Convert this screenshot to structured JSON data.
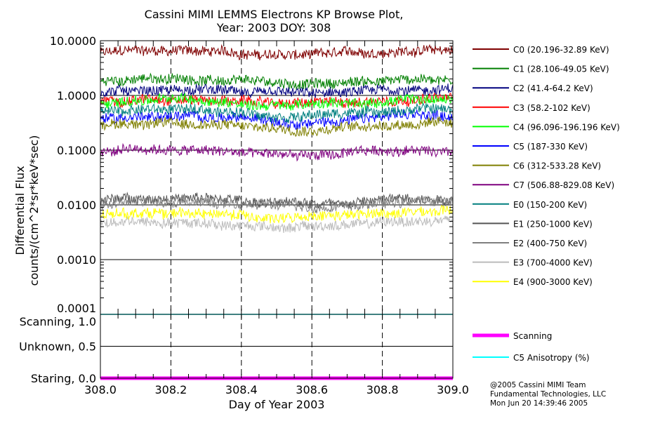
{
  "chart_data": {
    "type": "line",
    "title": "Cassini MIMI LEMMS Electrons KP Browse Plot,",
    "subtitle": "Year: 2003 DOY: 308",
    "xlabel": "Day of Year 2003",
    "ylabel_line1": "Differential Flux",
    "ylabel_line2": "counts/(cm^2*sr*keV*sec)",
    "xlim": [
      308.0,
      309.0
    ],
    "x_ticks": [
      "308.0",
      "308.2",
      "308.4",
      "308.6",
      "308.8",
      "309.0"
    ],
    "x_tick_values": [
      308.0,
      308.2,
      308.4,
      308.6,
      308.8,
      309.0
    ],
    "ylim": [
      0.0001,
      10
    ],
    "yscale": "log",
    "y_ticks": [
      "10.0000",
      "1.0000",
      "0.1000",
      "0.0100",
      "0.0010",
      "0.0001"
    ],
    "y_tick_values": [
      10,
      1,
      0.1,
      0.01,
      0.001,
      0.0001
    ],
    "series": [
      {
        "name": "C0 (20.196-32.89 KeV)",
        "color": "#7f0000",
        "level": 6.0
      },
      {
        "name": "C1 (28.106-49.05 KeV)",
        "color": "#007f00",
        "level": 1.8
      },
      {
        "name": "C2 (41.4-64.2 KeV)",
        "color": "#00007f",
        "level": 1.15
      },
      {
        "name": "C3 (58.2-102 KeV)",
        "color": "#ff0000",
        "level": 0.8
      },
      {
        "name": "C4 (96.096-196.196 KeV)",
        "color": "#00ff00",
        "level": 0.75
      },
      {
        "name": "C5 (187-330 KeV)",
        "color": "#0000ff",
        "level": 0.38
      },
      {
        "name": "C6 (312-533.28 KeV)",
        "color": "#7f7f00",
        "level": 0.28
      },
      {
        "name": "C7 (506.88-829.08 KeV)",
        "color": "#7f007f",
        "level": 0.09
      },
      {
        "name": "E0 (150-200 KeV)",
        "color": "#007f7f",
        "level": 0.5
      },
      {
        "name": "E1 (250-1000 KeV)",
        "color": "#555555",
        "level": 0.012
      },
      {
        "name": "E2 (400-750 KeV)",
        "color": "#7f7f7f",
        "level": 0.0105
      },
      {
        "name": "E3 (700-4000 KeV)",
        "color": "#bbbbbb",
        "level": 0.0045
      },
      {
        "name": "E4 (900-3000 KeV)",
        "color": "#ffff00",
        "level": 0.0065
      }
    ],
    "lower_panel": {
      "y_ticks": [
        "Scanning, 1.0",
        "Unknown, 0.5",
        "Staring, 0.0"
      ],
      "y_tick_values": [
        1.0,
        0.5,
        0.0
      ],
      "series": [
        {
          "name": "Scanning",
          "color": "#ff00ff",
          "value": 0.0
        },
        {
          "name": "C5 Anisotropy (%)",
          "color": "#00ffff",
          "value": 1.0
        }
      ]
    }
  },
  "footer": {
    "line1": "@2005 Cassini MIMI Team",
    "line2": "Fundamental Technologies, LLC",
    "line3": "Mon Jun 20 14:39:46 2005"
  }
}
